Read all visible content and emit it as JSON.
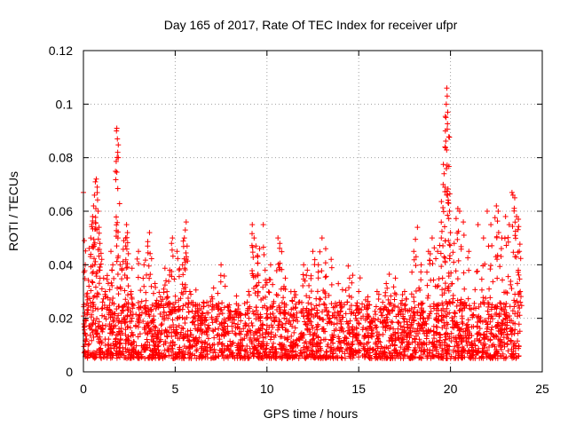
{
  "chart_data": {
    "type": "scatter",
    "title": "Day 165 of 2017, Rate Of TEC Index for receiver ufpr",
    "xlabel": "GPS time / hours",
    "ylabel": "ROTI / TECUs",
    "xlim": [
      0,
      25
    ],
    "ylim": [
      0,
      0.12
    ],
    "x_ticks": [
      "0",
      "5",
      "10",
      "15",
      "20",
      "25"
    ],
    "y_ticks": [
      "0",
      "0.02",
      "0.04",
      "0.06",
      "0.08",
      "0.1",
      "0.12"
    ],
    "grid": true,
    "marker": "+",
    "color": "#ff0000",
    "x_extent_hours": [
      0,
      23.8
    ],
    "baseline_band": [
      0.005,
      0.02
    ],
    "points": [
      {
        "x": 0.0,
        "y": 0.067
      },
      {
        "x": 0.05,
        "y": 0.049
      },
      {
        "x": 0.1,
        "y": 0.04
      },
      {
        "x": 0.2,
        "y": 0.028
      },
      {
        "x": 0.3,
        "y": 0.032
      },
      {
        "x": 0.4,
        "y": 0.05
      },
      {
        "x": 0.45,
        "y": 0.055
      },
      {
        "x": 0.5,
        "y": 0.058
      },
      {
        "x": 0.55,
        "y": 0.062
      },
      {
        "x": 0.6,
        "y": 0.066
      },
      {
        "x": 0.65,
        "y": 0.071
      },
      {
        "x": 0.7,
        "y": 0.072
      },
      {
        "x": 0.75,
        "y": 0.069
      },
      {
        "x": 0.8,
        "y": 0.06
      },
      {
        "x": 0.85,
        "y": 0.054
      },
      {
        "x": 0.9,
        "y": 0.048
      },
      {
        "x": 1.0,
        "y": 0.042
      },
      {
        "x": 1.1,
        "y": 0.035
      },
      {
        "x": 1.2,
        "y": 0.03
      },
      {
        "x": 1.3,
        "y": 0.036
      },
      {
        "x": 1.5,
        "y": 0.045
      },
      {
        "x": 1.6,
        "y": 0.04
      },
      {
        "x": 1.8,
        "y": 0.09
      },
      {
        "x": 1.82,
        "y": 0.091
      },
      {
        "x": 1.85,
        "y": 0.087
      },
      {
        "x": 1.87,
        "y": 0.082
      },
      {
        "x": 1.9,
        "y": 0.08
      },
      {
        "x": 2.0,
        "y": 0.04
      },
      {
        "x": 2.1,
        "y": 0.038
      },
      {
        "x": 2.2,
        "y": 0.049
      },
      {
        "x": 2.3,
        "y": 0.05
      },
      {
        "x": 2.35,
        "y": 0.055
      },
      {
        "x": 2.4,
        "y": 0.052
      },
      {
        "x": 2.6,
        "y": 0.03
      },
      {
        "x": 3.0,
        "y": 0.045
      },
      {
        "x": 3.3,
        "y": 0.04
      },
      {
        "x": 3.5,
        "y": 0.047
      },
      {
        "x": 3.6,
        "y": 0.052
      },
      {
        "x": 3.9,
        "y": 0.033
      },
      {
        "x": 4.2,
        "y": 0.028
      },
      {
        "x": 4.5,
        "y": 0.034
      },
      {
        "x": 4.7,
        "y": 0.038
      },
      {
        "x": 4.8,
        "y": 0.048
      },
      {
        "x": 4.85,
        "y": 0.05
      },
      {
        "x": 5.1,
        "y": 0.045
      },
      {
        "x": 5.4,
        "y": 0.04
      },
      {
        "x": 5.5,
        "y": 0.05
      },
      {
        "x": 5.55,
        "y": 0.053
      },
      {
        "x": 5.6,
        "y": 0.056
      },
      {
        "x": 5.65,
        "y": 0.047
      },
      {
        "x": 5.8,
        "y": 0.03
      },
      {
        "x": 6.2,
        "y": 0.025
      },
      {
        "x": 6.5,
        "y": 0.022
      },
      {
        "x": 7.0,
        "y": 0.028
      },
      {
        "x": 7.5,
        "y": 0.04
      },
      {
        "x": 8.0,
        "y": 0.02
      },
      {
        "x": 8.5,
        "y": 0.022
      },
      {
        "x": 9.0,
        "y": 0.03
      },
      {
        "x": 9.2,
        "y": 0.055
      },
      {
        "x": 9.3,
        "y": 0.05
      },
      {
        "x": 9.4,
        "y": 0.047
      },
      {
        "x": 9.5,
        "y": 0.043
      },
      {
        "x": 9.6,
        "y": 0.046
      },
      {
        "x": 9.8,
        "y": 0.055
      },
      {
        "x": 9.9,
        "y": 0.038
      },
      {
        "x": 10.2,
        "y": 0.04
      },
      {
        "x": 10.6,
        "y": 0.05
      },
      {
        "x": 10.7,
        "y": 0.048
      },
      {
        "x": 11.0,
        "y": 0.035
      },
      {
        "x": 11.5,
        "y": 0.03
      },
      {
        "x": 12.0,
        "y": 0.04
      },
      {
        "x": 12.2,
        "y": 0.038
      },
      {
        "x": 12.5,
        "y": 0.045
      },
      {
        "x": 12.8,
        "y": 0.04
      },
      {
        "x": 13.0,
        "y": 0.05
      },
      {
        "x": 13.2,
        "y": 0.046
      },
      {
        "x": 13.5,
        "y": 0.042
      },
      {
        "x": 14.0,
        "y": 0.025
      },
      {
        "x": 14.5,
        "y": 0.035
      },
      {
        "x": 15.0,
        "y": 0.03
      },
      {
        "x": 15.5,
        "y": 0.028
      },
      {
        "x": 16.0,
        "y": 0.03
      },
      {
        "x": 16.5,
        "y": 0.033
      },
      {
        "x": 17.0,
        "y": 0.035
      },
      {
        "x": 17.5,
        "y": 0.03
      },
      {
        "x": 18.0,
        "y": 0.045
      },
      {
        "x": 18.2,
        "y": 0.054
      },
      {
        "x": 18.4,
        "y": 0.04
      },
      {
        "x": 18.8,
        "y": 0.045
      },
      {
        "x": 19.0,
        "y": 0.05
      },
      {
        "x": 19.3,
        "y": 0.045
      },
      {
        "x": 19.5,
        "y": 0.05
      },
      {
        "x": 19.6,
        "y": 0.07
      },
      {
        "x": 19.65,
        "y": 0.074
      },
      {
        "x": 19.7,
        "y": 0.084
      },
      {
        "x": 19.72,
        "y": 0.09
      },
      {
        "x": 19.75,
        "y": 0.095
      },
      {
        "x": 19.77,
        "y": 0.1
      },
      {
        "x": 19.8,
        "y": 0.106
      },
      {
        "x": 19.82,
        "y": 0.103
      },
      {
        "x": 19.85,
        "y": 0.097
      },
      {
        "x": 19.9,
        "y": 0.063
      },
      {
        "x": 19.95,
        "y": 0.06
      },
      {
        "x": 20.0,
        "y": 0.052
      },
      {
        "x": 20.2,
        "y": 0.048
      },
      {
        "x": 20.4,
        "y": 0.061
      },
      {
        "x": 20.5,
        "y": 0.06
      },
      {
        "x": 20.7,
        "y": 0.056
      },
      {
        "x": 21.0,
        "y": 0.045
      },
      {
        "x": 21.5,
        "y": 0.055
      },
      {
        "x": 21.8,
        "y": 0.05
      },
      {
        "x": 22.0,
        "y": 0.06
      },
      {
        "x": 22.2,
        "y": 0.055
      },
      {
        "x": 22.5,
        "y": 0.062
      },
      {
        "x": 22.6,
        "y": 0.06
      },
      {
        "x": 22.8,
        "y": 0.05
      },
      {
        "x": 23.0,
        "y": 0.058
      },
      {
        "x": 23.2,
        "y": 0.055
      },
      {
        "x": 23.35,
        "y": 0.067
      },
      {
        "x": 23.4,
        "y": 0.066
      },
      {
        "x": 23.5,
        "y": 0.065
      },
      {
        "x": 23.6,
        "y": 0.058
      },
      {
        "x": 23.7,
        "y": 0.057
      },
      {
        "x": 23.75,
        "y": 0.045
      },
      {
        "x": 23.8,
        "y": 0.03
      }
    ]
  }
}
